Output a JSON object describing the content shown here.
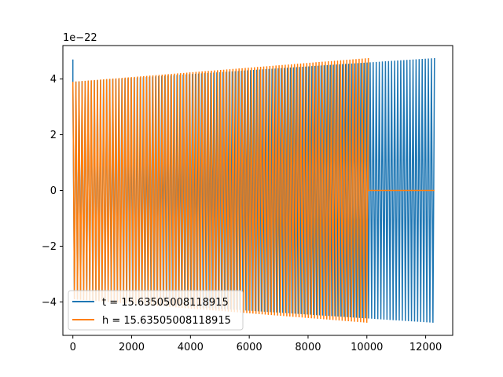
{
  "chart_data": {
    "type": "line",
    "title": "",
    "xlabel": "",
    "ylabel": "",
    "xlim": [
      -340,
      12920
    ],
    "ylim": [
      -5.2,
      5.2
    ],
    "y_offset_label": "1e−22",
    "x_ticks": [
      0,
      2000,
      4000,
      6000,
      8000,
      10000,
      12000
    ],
    "x_tick_labels": [
      "0",
      "2000",
      "4000",
      "6000",
      "8000",
      "10000",
      "12000"
    ],
    "y_ticks": [
      -4,
      -2,
      0,
      2,
      4
    ],
    "y_tick_labels": [
      "−4",
      "−2",
      "0",
      "2",
      "4"
    ],
    "grid": false,
    "legend_position": "lower-left",
    "series": [
      {
        "name": "t = 15.63505008118915",
        "color": "#1f77b4",
        "description_note": "oscillating signal",
        "x_start": 0,
        "x_end": 12300,
        "cycles": 118,
        "amplitude_start": 3.9,
        "amplitude_end": 4.75,
        "initial_spike": 4.7
      },
      {
        "name": "h = 15.63505008118915",
        "color": "#ff7f0e",
        "x_start": 0,
        "x_end": 10050,
        "cycles": 96,
        "amplitude_start": 3.9,
        "amplitude_end": 4.75,
        "flat_until": 12300,
        "flat_value": 0
      }
    ]
  }
}
